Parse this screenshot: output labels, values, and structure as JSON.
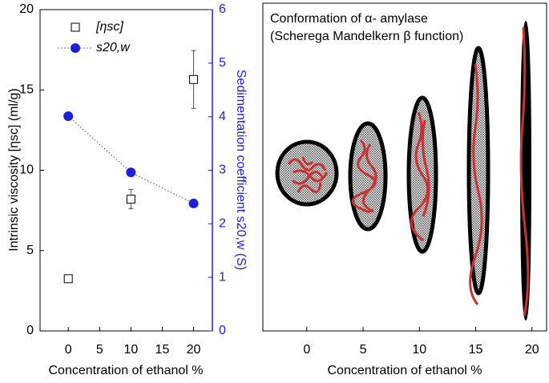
{
  "chart_data": [
    {
      "type": "scatter",
      "xlabel": "Concentration of ethanol %",
      "ylabel": "Intrinsic viscosity [ηsc] (ml/g)",
      "y2label": "Sedimentation coefficient s20,w (S)",
      "xlim": [
        -4.5,
        23
      ],
      "xticks": [
        0,
        5,
        10,
        15,
        20
      ],
      "ylim": [
        0,
        20
      ],
      "yticks": [
        0,
        5,
        10,
        15,
        20
      ],
      "y2lim": [
        0,
        6
      ],
      "y2ticks": [
        0,
        1,
        2,
        3,
        4,
        5,
        6
      ],
      "series": [
        {
          "name": "[ηsc]",
          "color": "#000000",
          "x": [
            0,
            10,
            20
          ],
          "values": [
            3.25,
            8.2,
            15.65
          ],
          "errors": [
            0,
            0.6,
            1.8
          ]
        },
        {
          "name": "s20,w",
          "color": "#1f1fd6",
          "axis": "y2",
          "x": [
            0,
            10,
            20
          ],
          "values": [
            4.01,
            2.96,
            2.38
          ]
        }
      ]
    },
    {
      "type": "illustration",
      "title": "Conformation of α- amylase",
      "subtitle": "(Scherega Mandelkern β function)",
      "xlabel": "Concentration of ethanol %",
      "xlim": [
        -3.9,
        21.3
      ],
      "xticks": [
        0,
        5,
        10,
        15,
        20
      ]
    }
  ]
}
